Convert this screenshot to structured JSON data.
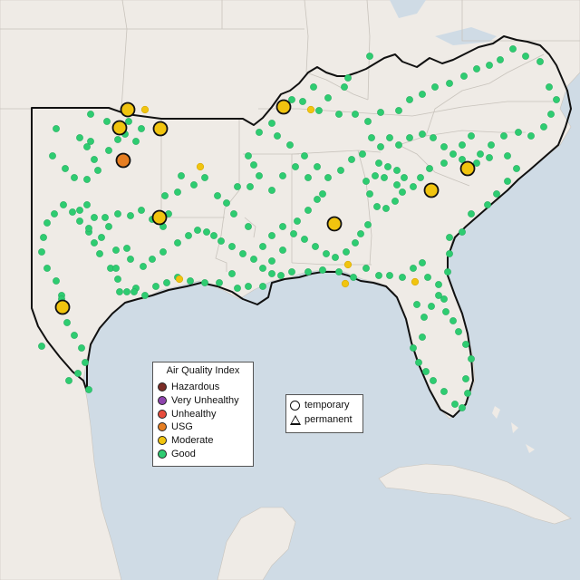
{
  "legend": {
    "title": "Air Quality Index",
    "items": [
      {
        "label": "Hazardous",
        "color": "#7b2d26"
      },
      {
        "label": "Very Unhealthy",
        "color": "#8e44ad"
      },
      {
        "label": "Unhealthy",
        "color": "#e74c3c"
      },
      {
        "label": "USG",
        "color": "#e67e22"
      },
      {
        "label": "Moderate",
        "color": "#f1c40f"
      },
      {
        "label": "Good",
        "color": "#2ecc71"
      }
    ]
  },
  "type_legend": {
    "temporary": "temporary",
    "permanent": "permanent"
  },
  "colors": {
    "water": "#cfdbe5",
    "land": "#efebe6",
    "region_border": "#111111",
    "good": "#2ecc71",
    "moderate": "#f1c40f",
    "usg": "#e67e22"
  },
  "map_data": {
    "monitor_counts_approx": {
      "good": 240,
      "moderate": 11,
      "usg": 1
    }
  }
}
